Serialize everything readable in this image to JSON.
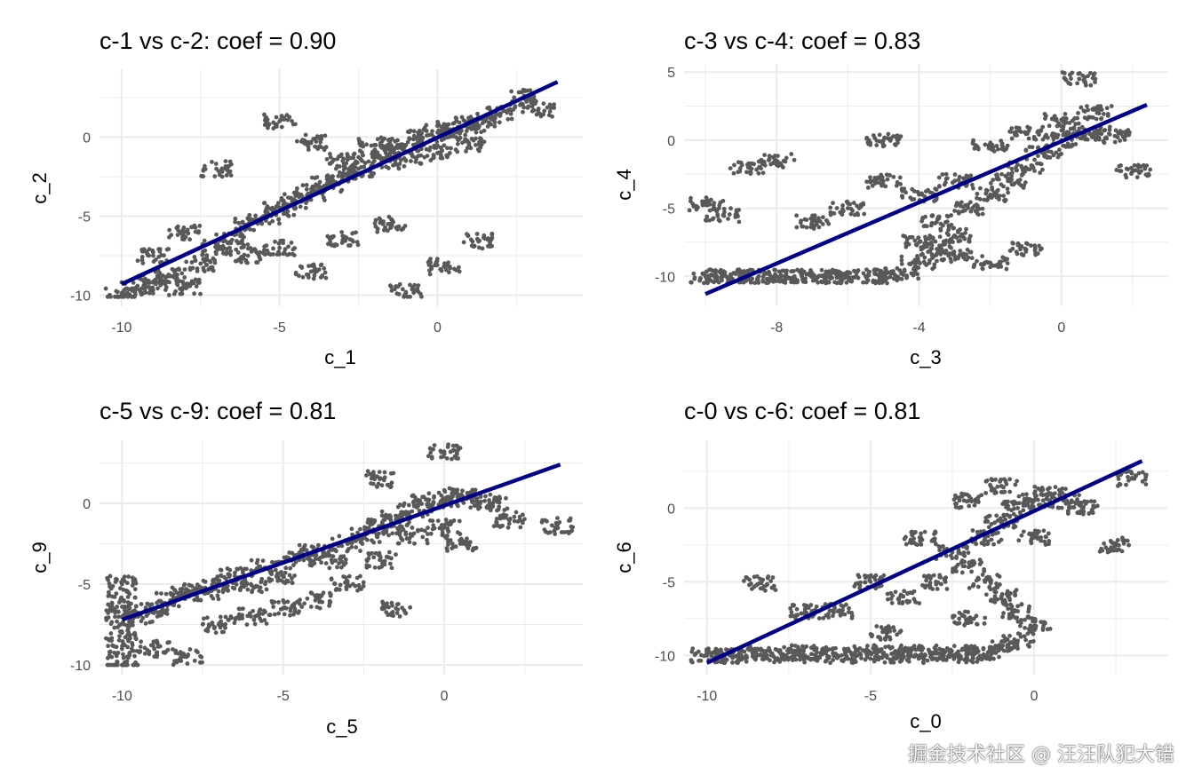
{
  "watermark": "掘金技术社区 @ 汪汪队犯大错",
  "colors": {
    "points": "#595959",
    "line": "#00008B",
    "grid": "#ebebeb"
  },
  "chart_data": [
    {
      "type": "scatter",
      "title": "c-1 vs c-2: coef = 0.90",
      "xlabel": "c_1",
      "ylabel": "c_2",
      "xlim": [
        -10.7,
        4.6
      ],
      "ylim": [
        -10.7,
        4.3
      ],
      "grid": true,
      "xticks": [
        -10,
        -5,
        0
      ],
      "yticks": [
        -10,
        -5,
        0
      ],
      "xminor": [
        -7.5,
        -2.5,
        2.5
      ],
      "yminor": [
        -7.5,
        -2.5,
        2.5
      ],
      "fit_line": [
        [
          -10,
          -9.3
        ],
        [
          3.8,
          3.5
        ]
      ],
      "points": [
        [
          -10,
          -10
        ],
        [
          -9.5,
          -9.6
        ],
        [
          -9,
          -9.2
        ],
        [
          -8.5,
          -8.8
        ],
        [
          -8,
          -9.5
        ],
        [
          -7.5,
          -8
        ],
        [
          -7,
          -7
        ],
        [
          -6.5,
          -6.5
        ],
        [
          -6,
          -5.5
        ],
        [
          -5.5,
          -5
        ],
        [
          -5,
          -4.5
        ],
        [
          -4.5,
          -4
        ],
        [
          -4,
          -3.5
        ],
        [
          -3.5,
          -3
        ],
        [
          -3,
          -2.5
        ],
        [
          -2.5,
          -2
        ],
        [
          -2,
          -1.5
        ],
        [
          -1.5,
          -1
        ],
        [
          -1,
          -0.5
        ],
        [
          -0.5,
          0
        ],
        [
          0,
          0.3
        ],
        [
          0.5,
          0.5
        ],
        [
          1,
          0.8
        ],
        [
          1.5,
          1
        ],
        [
          2,
          1.5
        ],
        [
          -1,
          -1.5
        ],
        [
          0,
          -1
        ],
        [
          1,
          -0.5
        ],
        [
          -2,
          -0.5
        ],
        [
          -3,
          -1.5
        ],
        [
          -8,
          -6
        ],
        [
          -9,
          -7.5
        ],
        [
          -6,
          -7.5
        ],
        [
          -5,
          -7
        ],
        [
          -4,
          -8.5
        ],
        [
          -3,
          -6.5
        ],
        [
          -1.5,
          -5.5
        ],
        [
          0.2,
          -8.2
        ],
        [
          1.3,
          -6.6
        ],
        [
          -1,
          -9.8
        ],
        [
          3.2,
          1.8
        ],
        [
          2.8,
          2.5
        ],
        [
          -5,
          1
        ],
        [
          -4,
          -0.3
        ],
        [
          -7,
          -2
        ]
      ]
    },
    {
      "type": "scatter",
      "title": "c-3 vs c-4: coef = 0.83",
      "xlabel": "c_3",
      "ylabel": "c_4",
      "xlim": [
        -10.6,
        3.0
      ],
      "ylim": [
        -12.2,
        5.6
      ],
      "grid": true,
      "xticks": [
        -8,
        -4,
        0
      ],
      "yticks": [
        -10,
        -5,
        0,
        5
      ],
      "xminor": [
        -10,
        -6,
        -2,
        2
      ],
      "yminor": [
        -7.5,
        -2.5,
        2.5
      ],
      "fit_line": [
        [
          -10,
          -11.3
        ],
        [
          2.4,
          2.6
        ]
      ],
      "points": [
        [
          -10,
          -10
        ],
        [
          -9.5,
          -10
        ],
        [
          -9,
          -10
        ],
        [
          -8.5,
          -10
        ],
        [
          -8,
          -10
        ],
        [
          -7.5,
          -10
        ],
        [
          -7,
          -10
        ],
        [
          -6.5,
          -10
        ],
        [
          -6,
          -10
        ],
        [
          -5.5,
          -10
        ],
        [
          -5,
          -10
        ],
        [
          -4.5,
          -9.8
        ],
        [
          -4,
          -9
        ],
        [
          -3.5,
          -8
        ],
        [
          -3,
          -7
        ],
        [
          -3.5,
          -6
        ],
        [
          -2.5,
          -5
        ],
        [
          -2,
          -4
        ],
        [
          -1.5,
          -3
        ],
        [
          -1,
          -2
        ],
        [
          -0.5,
          -1
        ],
        [
          0,
          0
        ],
        [
          0.5,
          0.5
        ],
        [
          1,
          0.5
        ],
        [
          1.5,
          0.3
        ],
        [
          -1,
          0.5
        ],
        [
          -2,
          -0.5
        ],
        [
          0,
          1.5
        ],
        [
          1,
          2
        ],
        [
          -3,
          -3
        ],
        [
          -4,
          -4
        ],
        [
          -5,
          -3
        ],
        [
          -6,
          -5
        ],
        [
          -7,
          -6
        ],
        [
          -8.8,
          -2
        ],
        [
          -8,
          -1.5
        ],
        [
          -10,
          -4.7
        ],
        [
          -9.5,
          -5.5
        ],
        [
          -5,
          0
        ],
        [
          -2,
          -9
        ],
        [
          -1,
          -8
        ],
        [
          0.5,
          4.5
        ],
        [
          2,
          -2.3
        ],
        [
          -4,
          -7.5
        ],
        [
          -3,
          -8.5
        ]
      ]
    },
    {
      "type": "scatter",
      "title": "c-5 vs c-9: coef = 0.81",
      "xlabel": "c_5",
      "ylabel": "c_9",
      "xlim": [
        -10.7,
        4.3
      ],
      "ylim": [
        -10.6,
        3.9
      ],
      "grid": true,
      "xticks": [
        -10,
        -5,
        0
      ],
      "yticks": [
        -10,
        -5,
        0
      ],
      "xminor": [
        -7.5,
        -2.5,
        2.5
      ],
      "yminor": [
        -7.5,
        -2.5,
        2.5
      ],
      "fit_line": [
        [
          -10,
          -7.2
        ],
        [
          3.6,
          2.4
        ]
      ],
      "points": [
        [
          -10,
          -10
        ],
        [
          -10,
          -9
        ],
        [
          -10,
          -8
        ],
        [
          -10,
          -7
        ],
        [
          -10,
          -6
        ],
        [
          -10,
          -5
        ],
        [
          -9.5,
          -7
        ],
        [
          -9,
          -6.5
        ],
        [
          -8.5,
          -6
        ],
        [
          -8,
          -5.5
        ],
        [
          -7.5,
          -5.5
        ],
        [
          -7,
          -5
        ],
        [
          -6.5,
          -4.5
        ],
        [
          -6,
          -5
        ],
        [
          -5.5,
          -4
        ],
        [
          -5,
          -4.5
        ],
        [
          -4.5,
          -3.5
        ],
        [
          -4,
          -3
        ],
        [
          -3.5,
          -3.5
        ],
        [
          -3,
          -2.5
        ],
        [
          -2.5,
          -2
        ],
        [
          -2,
          -1.5
        ],
        [
          -1.5,
          -1
        ],
        [
          -1,
          -0.5
        ],
        [
          -0.5,
          0
        ],
        [
          0,
          0.3
        ],
        [
          0.5,
          0.5
        ],
        [
          1,
          0.2
        ],
        [
          1.5,
          0
        ],
        [
          -1,
          -2
        ],
        [
          0,
          -1.5
        ],
        [
          0.5,
          -2.5
        ],
        [
          -2,
          -3.5
        ],
        [
          -3,
          -5
        ],
        [
          -4,
          -6
        ],
        [
          -5,
          -6.5
        ],
        [
          -6,
          -7
        ],
        [
          -7,
          -7.5
        ],
        [
          -8,
          -9.5
        ],
        [
          -9,
          -9
        ],
        [
          0,
          3.2
        ],
        [
          2,
          -1
        ],
        [
          3.5,
          -1.4
        ],
        [
          -1.5,
          -6.5
        ],
        [
          -2,
          1.5
        ]
      ]
    },
    {
      "type": "scatter",
      "title": "c-0 vs c-6: coef = 0.81",
      "xlabel": "c_0",
      "ylabel": "c_6",
      "xlim": [
        -10.7,
        4.1
      ],
      "ylim": [
        -11.3,
        4.6
      ],
      "grid": true,
      "xticks": [
        -10,
        -5,
        0
      ],
      "yticks": [
        -10,
        -5,
        0
      ],
      "xminor": [
        -7.5,
        -2.5,
        2.5
      ],
      "yminor": [
        -7.5,
        -2.5,
        2.5
      ],
      "fit_line": [
        [
          -10,
          -10.5
        ],
        [
          3.3,
          3.2
        ]
      ],
      "points": [
        [
          -10,
          -10
        ],
        [
          -9.5,
          -10
        ],
        [
          -9,
          -10
        ],
        [
          -8.5,
          -9.8
        ],
        [
          -8,
          -10
        ],
        [
          -7.5,
          -9.8
        ],
        [
          -7,
          -10
        ],
        [
          -6.5,
          -9.8
        ],
        [
          -6,
          -10
        ],
        [
          -5.5,
          -10
        ],
        [
          -5,
          -9.8
        ],
        [
          -4.5,
          -10
        ],
        [
          -4,
          -9.8
        ],
        [
          -3.5,
          -10
        ],
        [
          -3,
          -9.8
        ],
        [
          -2.5,
          -10
        ],
        [
          -2,
          -9.8
        ],
        [
          -1.5,
          -10
        ],
        [
          -1,
          -9.5
        ],
        [
          -0.5,
          -9
        ],
        [
          0,
          -8
        ],
        [
          -0.5,
          -7
        ],
        [
          -1,
          -6
        ],
        [
          -1.5,
          -5
        ],
        [
          -2,
          -4
        ],
        [
          -2.5,
          -3
        ],
        [
          -1.5,
          -2
        ],
        [
          -1,
          -1
        ],
        [
          -0.5,
          0
        ],
        [
          0,
          0.5
        ],
        [
          0.5,
          1
        ],
        [
          1,
          0.5
        ],
        [
          1.5,
          0
        ],
        [
          -2,
          0.5
        ],
        [
          -1,
          1.5
        ],
        [
          0,
          -2
        ],
        [
          -3,
          -5
        ],
        [
          -4,
          -6
        ],
        [
          -5,
          -5
        ],
        [
          -6,
          -7
        ],
        [
          -7,
          -7
        ],
        [
          -3.5,
          -2
        ],
        [
          -8.4,
          -5.1
        ],
        [
          3,
          2
        ],
        [
          2.5,
          -2.5
        ],
        [
          -2,
          -7.5
        ],
        [
          -4.5,
          -8.5
        ]
      ]
    }
  ]
}
